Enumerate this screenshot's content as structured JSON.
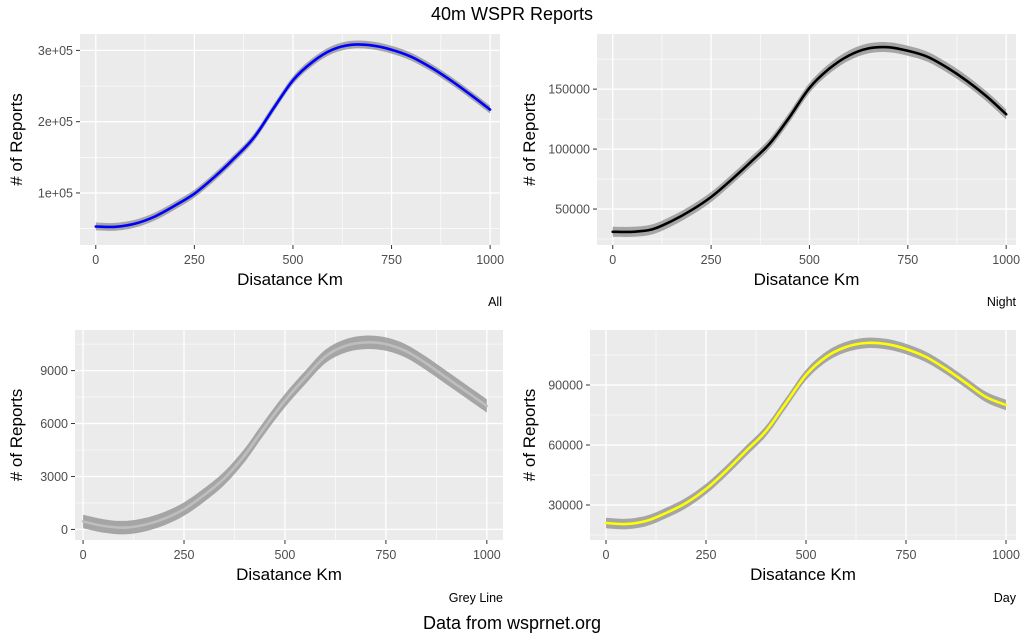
{
  "title": "40m WSPR Reports",
  "caption": "Data from wsprnet.org",
  "chart_data": [
    {
      "type": "line",
      "caption": "All",
      "xlabel": "Disatance Km",
      "ylabel": "# of Reports",
      "xlim": [
        -40,
        1025
      ],
      "ylim": [
        27000,
        323000
      ],
      "x_ticks": [
        0,
        250,
        500,
        750,
        1000
      ],
      "x_tick_labels": [
        "0",
        "250",
        "500",
        "750",
        "1000"
      ],
      "y_ticks": [
        100000,
        200000,
        300000
      ],
      "y_tick_labels": [
        "1e+05",
        "2e+05",
        "3e+05"
      ],
      "color": "#0000ff",
      "band_color": "#999999",
      "x": [
        0,
        50,
        100,
        150,
        200,
        250,
        300,
        350,
        400,
        450,
        500,
        550,
        600,
        650,
        700,
        750,
        800,
        850,
        900,
        950,
        1000
      ],
      "y": [
        53000,
        52500,
        57000,
        67000,
        82000,
        99000,
        122000,
        148000,
        177000,
        218000,
        258000,
        284000,
        301000,
        308000,
        307000,
        301000,
        291000,
        276000,
        258000,
        238000,
        217000
      ]
    },
    {
      "type": "line",
      "caption": "Night",
      "xlabel": "Disatance Km",
      "ylabel": "# of Reports",
      "xlim": [
        -40,
        1025
      ],
      "ylim": [
        20000,
        196000
      ],
      "x_ticks": [
        0,
        250,
        500,
        750,
        1000
      ],
      "x_tick_labels": [
        "0",
        "250",
        "500",
        "750",
        "1000"
      ],
      "y_ticks": [
        50000,
        100000,
        150000
      ],
      "y_tick_labels": [
        "50000",
        "100000",
        "150000"
      ],
      "color": "#000000",
      "band_color": "#999999",
      "x": [
        0,
        50,
        100,
        150,
        200,
        250,
        300,
        350,
        400,
        450,
        500,
        550,
        600,
        650,
        700,
        750,
        800,
        850,
        900,
        950,
        1000
      ],
      "y": [
        31000,
        31000,
        33000,
        40000,
        49000,
        60000,
        74000,
        89000,
        105000,
        127000,
        151000,
        167000,
        178000,
        184000,
        185000,
        182000,
        177000,
        168000,
        157000,
        144000,
        129000
      ]
    },
    {
      "type": "line",
      "caption": "Grey Line",
      "xlabel": "Disatance Km",
      "ylabel": "# of Reports",
      "xlim": [
        -20,
        1040
      ],
      "ylim": [
        -600,
        11300
      ],
      "x_ticks": [
        0,
        250,
        500,
        750,
        1000
      ],
      "x_tick_labels": [
        "0",
        "250",
        "500",
        "750",
        "1000"
      ],
      "y_ticks": [
        0,
        3000,
        6000,
        9000
      ],
      "y_tick_labels": [
        "0",
        "3000",
        "6000",
        "9000"
      ],
      "color": "#bebebe",
      "band_color": "#999999",
      "x": [
        0,
        50,
        100,
        150,
        200,
        250,
        300,
        350,
        400,
        450,
        500,
        550,
        600,
        650,
        700,
        750,
        800,
        850,
        900,
        950,
        1000
      ],
      "y": [
        450,
        200,
        100,
        250,
        600,
        1150,
        1950,
        2900,
        4200,
        5800,
        7300,
        8600,
        9800,
        10400,
        10600,
        10500,
        10100,
        9400,
        8600,
        7800,
        7000
      ]
    },
    {
      "type": "line",
      "caption": "Day",
      "xlabel": "Disatance Km",
      "ylabel": "# of Reports",
      "xlim": [
        -40,
        1025
      ],
      "ylim": [
        12500,
        117500
      ],
      "x_ticks": [
        0,
        250,
        500,
        750,
        1000
      ],
      "x_tick_labels": [
        "0",
        "250",
        "500",
        "750",
        "1000"
      ],
      "y_ticks": [
        30000,
        60000,
        90000
      ],
      "y_tick_labels": [
        "30000",
        "60000",
        "90000"
      ],
      "color": "#ffff00",
      "band_color": "#999999",
      "x": [
        0,
        50,
        100,
        150,
        200,
        250,
        300,
        350,
        400,
        450,
        500,
        550,
        600,
        650,
        700,
        750,
        800,
        850,
        900,
        950,
        1000
      ],
      "y": [
        21000,
        20500,
        22000,
        26000,
        31000,
        38000,
        47000,
        57000,
        67000,
        81000,
        95000,
        104000,
        109000,
        111000,
        110500,
        108000,
        104000,
        98000,
        91000,
        84000,
        80000
      ]
    }
  ]
}
